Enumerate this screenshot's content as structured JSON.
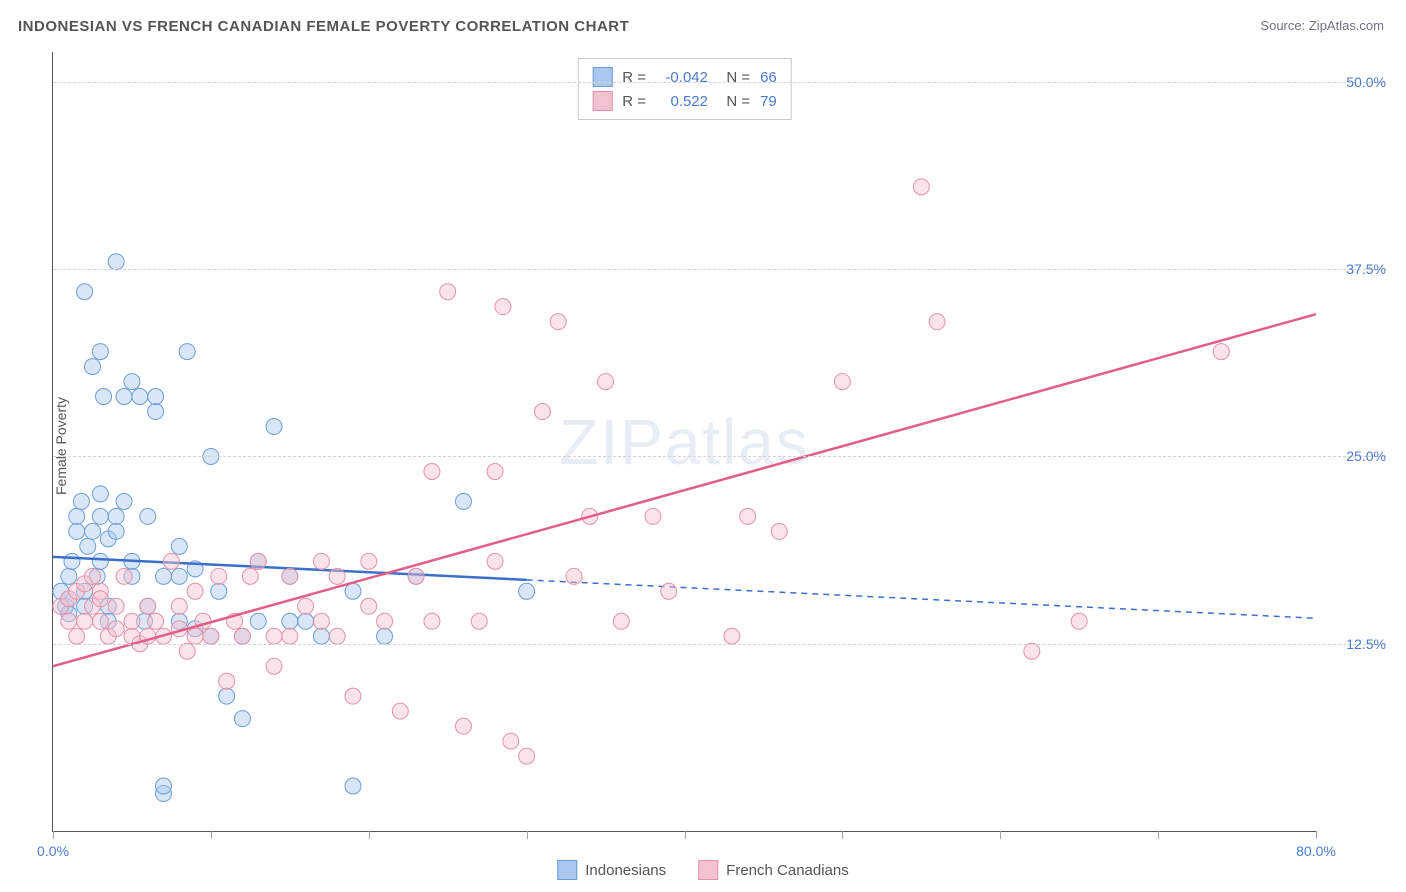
{
  "chart": {
    "type": "scatter",
    "title": "INDONESIAN VS FRENCH CANADIAN FEMALE POVERTY CORRELATION CHART",
    "source_label": "Source:",
    "source_name": "ZipAtlas.com",
    "y_axis_label": "Female Poverty",
    "watermark": "ZIPatlas",
    "background_color": "#ffffff",
    "grid_color": "#d1d5db",
    "axis_color": "#555555",
    "tick_label_color": "#4a7bd0",
    "title_fontsize": 15,
    "label_fontsize": 14,
    "xlim": [
      0,
      80
    ],
    "ylim": [
      0,
      52
    ],
    "x_ticks": [
      0,
      10,
      20,
      30,
      40,
      50,
      60,
      70,
      80
    ],
    "x_tick_labels": {
      "0": "0.0%",
      "80": "80.0%"
    },
    "y_ticks": [
      12.5,
      25.0,
      37.5,
      50.0
    ],
    "y_tick_labels": [
      "12.5%",
      "25.0%",
      "37.5%",
      "50.0%"
    ],
    "marker_radius": 8,
    "marker_opacity": 0.45,
    "line_width": 2.5,
    "series": [
      {
        "key": "indonesians",
        "label": "Indonesians",
        "color_fill": "#a9c7ef",
        "color_stroke": "#6b9ed8",
        "line_color": "#3b6fc9",
        "R": "-0.042",
        "N": "66",
        "regression": {
          "x1": 0,
          "y1": 18.3,
          "x2": 80,
          "y2": 14.2,
          "solid_until_x": 30
        },
        "points": [
          [
            0.5,
            16
          ],
          [
            0.8,
            15
          ],
          [
            1,
            17
          ],
          [
            1,
            14.5
          ],
          [
            1,
            15.5
          ],
          [
            1.2,
            18
          ],
          [
            1.5,
            20
          ],
          [
            1.5,
            21
          ],
          [
            1.8,
            22
          ],
          [
            2,
            36
          ],
          [
            2,
            15
          ],
          [
            2,
            16
          ],
          [
            2.2,
            19
          ],
          [
            2.5,
            20
          ],
          [
            2.5,
            31
          ],
          [
            2.8,
            17
          ],
          [
            3,
            18
          ],
          [
            3,
            21
          ],
          [
            3,
            22.5
          ],
          [
            3,
            32
          ],
          [
            3.2,
            29
          ],
          [
            3.5,
            14
          ],
          [
            3.5,
            15
          ],
          [
            3.5,
            19.5
          ],
          [
            4,
            38
          ],
          [
            4,
            20
          ],
          [
            4,
            21
          ],
          [
            4.5,
            22
          ],
          [
            4.5,
            29
          ],
          [
            5,
            30
          ],
          [
            5,
            17
          ],
          [
            5,
            18
          ],
          [
            5.5,
            29
          ],
          [
            5.8,
            14
          ],
          [
            6,
            15
          ],
          [
            6,
            21
          ],
          [
            6.5,
            28
          ],
          [
            6.5,
            29
          ],
          [
            7,
            2.5
          ],
          [
            7,
            3
          ],
          [
            7,
            17
          ],
          [
            8,
            14
          ],
          [
            8,
            17
          ],
          [
            8,
            19
          ],
          [
            8.5,
            32
          ],
          [
            9,
            13.5
          ],
          [
            9,
            17.5
          ],
          [
            10,
            25
          ],
          [
            10,
            13
          ],
          [
            10.5,
            16
          ],
          [
            11,
            9
          ],
          [
            12,
            13
          ],
          [
            12,
            7.5
          ],
          [
            13,
            14
          ],
          [
            13,
            18
          ],
          [
            14,
            27
          ],
          [
            15,
            14
          ],
          [
            15,
            17
          ],
          [
            16,
            14
          ],
          [
            17,
            13
          ],
          [
            19,
            3
          ],
          [
            19,
            16
          ],
          [
            21,
            13
          ],
          [
            23,
            17
          ],
          [
            26,
            22
          ],
          [
            30,
            16
          ]
        ]
      },
      {
        "key": "french_canadians",
        "label": "French Canadians",
        "color_fill": "#f4c2cf",
        "color_stroke": "#e492a8",
        "line_color": "#e15f86",
        "R": "0.522",
        "N": "79",
        "regression": {
          "x1": 0,
          "y1": 11.0,
          "x2": 80,
          "y2": 34.5,
          "solid_until_x": 80
        },
        "points": [
          [
            0.5,
            15
          ],
          [
            1,
            14
          ],
          [
            1,
            15.5
          ],
          [
            1.5,
            16
          ],
          [
            1.5,
            13
          ],
          [
            2,
            16.5
          ],
          [
            2,
            14
          ],
          [
            2.5,
            17
          ],
          [
            2.5,
            15
          ],
          [
            3,
            14
          ],
          [
            3,
            16
          ],
          [
            3,
            15.5
          ],
          [
            3.5,
            13
          ],
          [
            4,
            15
          ],
          [
            4,
            13.5
          ],
          [
            4.5,
            17
          ],
          [
            5,
            13
          ],
          [
            5,
            14
          ],
          [
            5.5,
            12.5
          ],
          [
            6,
            15
          ],
          [
            6,
            13
          ],
          [
            6.5,
            14
          ],
          [
            7,
            13
          ],
          [
            7.5,
            18
          ],
          [
            8,
            13.5
          ],
          [
            8,
            15
          ],
          [
            8.5,
            12
          ],
          [
            9,
            16
          ],
          [
            9,
            13
          ],
          [
            9.5,
            14
          ],
          [
            10,
            13
          ],
          [
            10.5,
            17
          ],
          [
            11,
            10
          ],
          [
            11.5,
            14
          ],
          [
            12,
            13
          ],
          [
            12.5,
            17
          ],
          [
            13,
            18
          ],
          [
            14,
            13
          ],
          [
            14,
            11
          ],
          [
            15,
            13
          ],
          [
            15,
            17
          ],
          [
            16,
            15
          ],
          [
            17,
            18
          ],
          [
            17,
            14
          ],
          [
            18,
            17
          ],
          [
            18,
            13
          ],
          [
            19,
            9
          ],
          [
            20,
            15
          ],
          [
            20,
            18
          ],
          [
            21,
            14
          ],
          [
            22,
            8
          ],
          [
            23,
            17
          ],
          [
            24,
            14
          ],
          [
            24,
            24
          ],
          [
            25,
            36
          ],
          [
            26,
            7
          ],
          [
            27,
            14
          ],
          [
            28,
            18
          ],
          [
            28,
            24
          ],
          [
            28.5,
            35
          ],
          [
            29,
            6
          ],
          [
            30,
            5
          ],
          [
            31,
            28
          ],
          [
            32,
            34
          ],
          [
            33,
            17
          ],
          [
            34,
            21
          ],
          [
            35,
            30
          ],
          [
            36,
            14
          ],
          [
            38,
            21
          ],
          [
            39,
            16
          ],
          [
            43,
            13
          ],
          [
            44,
            21
          ],
          [
            46,
            20
          ],
          [
            50,
            30
          ],
          [
            55,
            43
          ],
          [
            56,
            34
          ],
          [
            62,
            12
          ],
          [
            65,
            14
          ],
          [
            74,
            32
          ]
        ]
      }
    ]
  }
}
